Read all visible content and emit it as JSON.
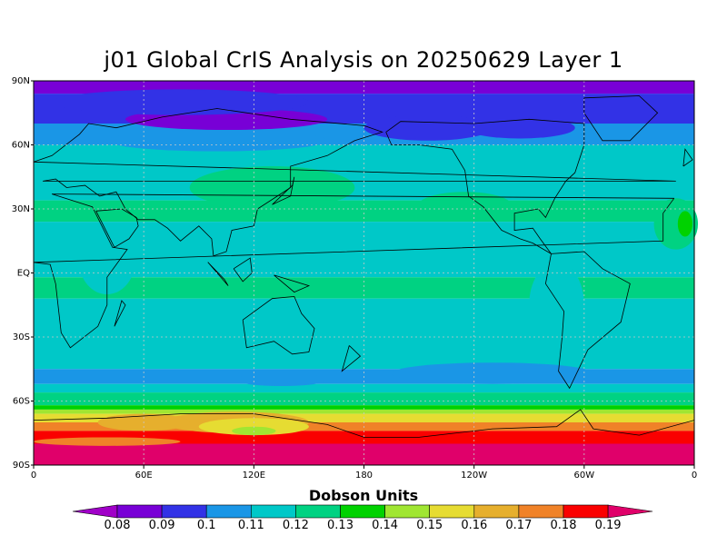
{
  "title": "j01 Global CrIS Analysis on 20250629 Layer 1",
  "chart_data": {
    "type": "heatmap",
    "title": "j01 Global CrIS Analysis on 20250629 Layer 1",
    "projection": "cylindrical equidistant, centered on 180",
    "x_ticks": [
      "0",
      "60E",
      "120E",
      "180",
      "120W",
      "60W",
      "0"
    ],
    "y_ticks": [
      "90N",
      "60N",
      "30N",
      "EQ",
      "30S",
      "60S",
      "90S"
    ],
    "grid": true,
    "colorbar": {
      "title": "Dobson Units",
      "labels": [
        "0.08",
        "0.09",
        "0.1",
        "0.11",
        "0.12",
        "0.13",
        "0.14",
        "0.15",
        "0.16",
        "0.17",
        "0.18",
        "0.19"
      ],
      "colors": [
        "#a000c8",
        "#7800d6",
        "#3232e6",
        "#1a96e6",
        "#00c8c8",
        "#00d282",
        "#00d200",
        "#a0e632",
        "#e6dc32",
        "#e6af2d",
        "#f08228",
        "#fa0000",
        "#e0006a"
      ]
    },
    "zones": [
      {
        "lat_top": 90,
        "lat_bottom": 84,
        "value": 0.08
      },
      {
        "lat_top": 84,
        "lat_bottom": 70,
        "value": 0.09
      },
      {
        "lat_top": 70,
        "lat_bottom": 60,
        "value": 0.1
      },
      {
        "lat_top": 60,
        "lat_bottom": 34,
        "value": 0.11
      },
      {
        "lat_top": 34,
        "lat_bottom": 24,
        "value": 0.12
      },
      {
        "lat_top": 24,
        "lat_bottom": -2,
        "value": 0.11
      },
      {
        "lat_top": -2,
        "lat_bottom": -12,
        "value": 0.12
      },
      {
        "lat_top": -12,
        "lat_bottom": -45,
        "value": 0.11
      },
      {
        "lat_top": -45,
        "lat_bottom": -52,
        "value": 0.1
      },
      {
        "lat_top": -52,
        "lat_bottom": -56,
        "value": 0.11
      },
      {
        "lat_top": -56,
        "lat_bottom": -62,
        "value": 0.12
      },
      {
        "lat_top": -62,
        "lat_bottom": -64,
        "value": 0.13
      },
      {
        "lat_top": -64,
        "lat_bottom": -66,
        "value": 0.14
      },
      {
        "lat_top": -66,
        "lat_bottom": -70,
        "value": 0.15
      },
      {
        "lat_top": -70,
        "lat_bottom": -74,
        "value": 0.17
      },
      {
        "lat_top": -74,
        "lat_bottom": -80,
        "value": 0.18
      },
      {
        "lat_top": -80,
        "lat_bottom": -90,
        "value": 0.19
      }
    ],
    "features": [
      {
        "lon": 105,
        "lat": 72,
        "rx": 55,
        "ry": 5,
        "value": 0.08
      },
      {
        "lon": 215,
        "lat": 68,
        "rx": 35,
        "ry": 6,
        "value": 0.09
      },
      {
        "lon": 265,
        "lat": 68,
        "rx": 30,
        "ry": 5,
        "value": 0.09
      },
      {
        "lon": 80,
        "lat": 80,
        "rx": 70,
        "ry": 6,
        "value": 0.09
      },
      {
        "lon": 100,
        "lat": 62,
        "rx": 60,
        "ry": 5,
        "value": 0.1
      },
      {
        "lon": 350,
        "lat": 23,
        "rx": 12,
        "ry": 12,
        "value": 0.12
      },
      {
        "lon": 355,
        "lat": 23,
        "rx": 4,
        "ry": 6,
        "value": 0.13
      },
      {
        "lon": 130,
        "lat": 40,
        "rx": 45,
        "ry": 10,
        "value": 0.12
      },
      {
        "lon": 235,
        "lat": 32,
        "rx": 25,
        "ry": 6,
        "value": 0.12
      },
      {
        "lon": 40,
        "lat": 5,
        "rx": 15,
        "ry": 15,
        "value": 0.11
      },
      {
        "lon": 285,
        "lat": -15,
        "rx": 15,
        "ry": 20,
        "value": 0.11
      },
      {
        "lon": 250,
        "lat": -47,
        "rx": 55,
        "ry": 5,
        "value": 0.1
      },
      {
        "lon": 135,
        "lat": -50,
        "rx": 25,
        "ry": 3,
        "value": 0.1
      },
      {
        "lon": 110,
        "lat": -70,
        "rx": 40,
        "ry": 5,
        "value": 0.16
      },
      {
        "lon": 120,
        "lat": -72,
        "rx": 30,
        "ry": 4,
        "value": 0.15
      },
      {
        "lon": 120,
        "lat": -74,
        "rx": 12,
        "ry": 2,
        "value": 0.14
      },
      {
        "lon": 60,
        "lat": -70,
        "rx": 25,
        "ry": 4,
        "value": 0.16
      },
      {
        "lon": 40,
        "lat": -79,
        "rx": 40,
        "ry": 2,
        "value": 0.17
      }
    ]
  }
}
